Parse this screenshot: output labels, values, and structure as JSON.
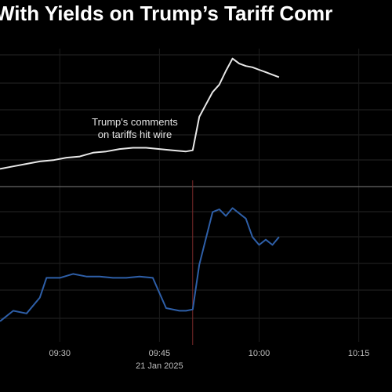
{
  "chart_data": {
    "type": "line",
    "title": "With Yields on Trump’s Tariff Comr",
    "annotation": "Trump's comments\non tariffs hit wire",
    "event_time": "09:50",
    "date_label": "21 Jan 2025",
    "x_ticks": [
      "09:30",
      "09:45",
      "10:00",
      "10:15"
    ],
    "xlim": [
      "09:21",
      "10:20"
    ],
    "grid": true,
    "panels": [
      {
        "name": "",
        "color": "#e8e8e8",
        "ylim": [
          0,
          100
        ],
        "x": [
          "09:21",
          "09:23",
          "09:25",
          "09:27",
          "09:29",
          "09:31",
          "09:33",
          "09:35",
          "09:37",
          "09:39",
          "09:41",
          "09:43",
          "09:45",
          "09:47",
          "09:49",
          "09:50",
          "09:51",
          "09:52",
          "09:53",
          "09:54",
          "09:55",
          "09:56",
          "09:57",
          "09:58",
          "09:59",
          "10:00",
          "10:01",
          "10:02",
          "10:03"
        ],
        "values": [
          8,
          10,
          12,
          14,
          15,
          17,
          18,
          21,
          22,
          24,
          25,
          25,
          24,
          23,
          22,
          23,
          50,
          60,
          70,
          76,
          87,
          97,
          93,
          91,
          90,
          88,
          86,
          84,
          82
        ]
      },
      {
        "name": "",
        "color": "#2e5fa8",
        "ylim": [
          0,
          100
        ],
        "x": [
          "09:21",
          "09:23",
          "09:25",
          "09:27",
          "09:28",
          "09:30",
          "09:32",
          "09:34",
          "09:36",
          "09:38",
          "09:40",
          "09:42",
          "09:44",
          "09:46",
          "09:48",
          "09:49",
          "09:50",
          "09:51",
          "09:52",
          "09:53",
          "09:54",
          "09:55",
          "09:56",
          "09:57",
          "09:58",
          "09:59",
          "10:00",
          "10:01",
          "10:02",
          "10:03"
        ],
        "values": [
          12,
          20,
          18,
          30,
          45,
          45,
          48,
          46,
          46,
          45,
          45,
          46,
          45,
          22,
          20,
          20,
          21,
          55,
          75,
          95,
          97,
          92,
          98,
          94,
          90,
          76,
          70,
          74,
          70,
          76
        ]
      }
    ]
  }
}
